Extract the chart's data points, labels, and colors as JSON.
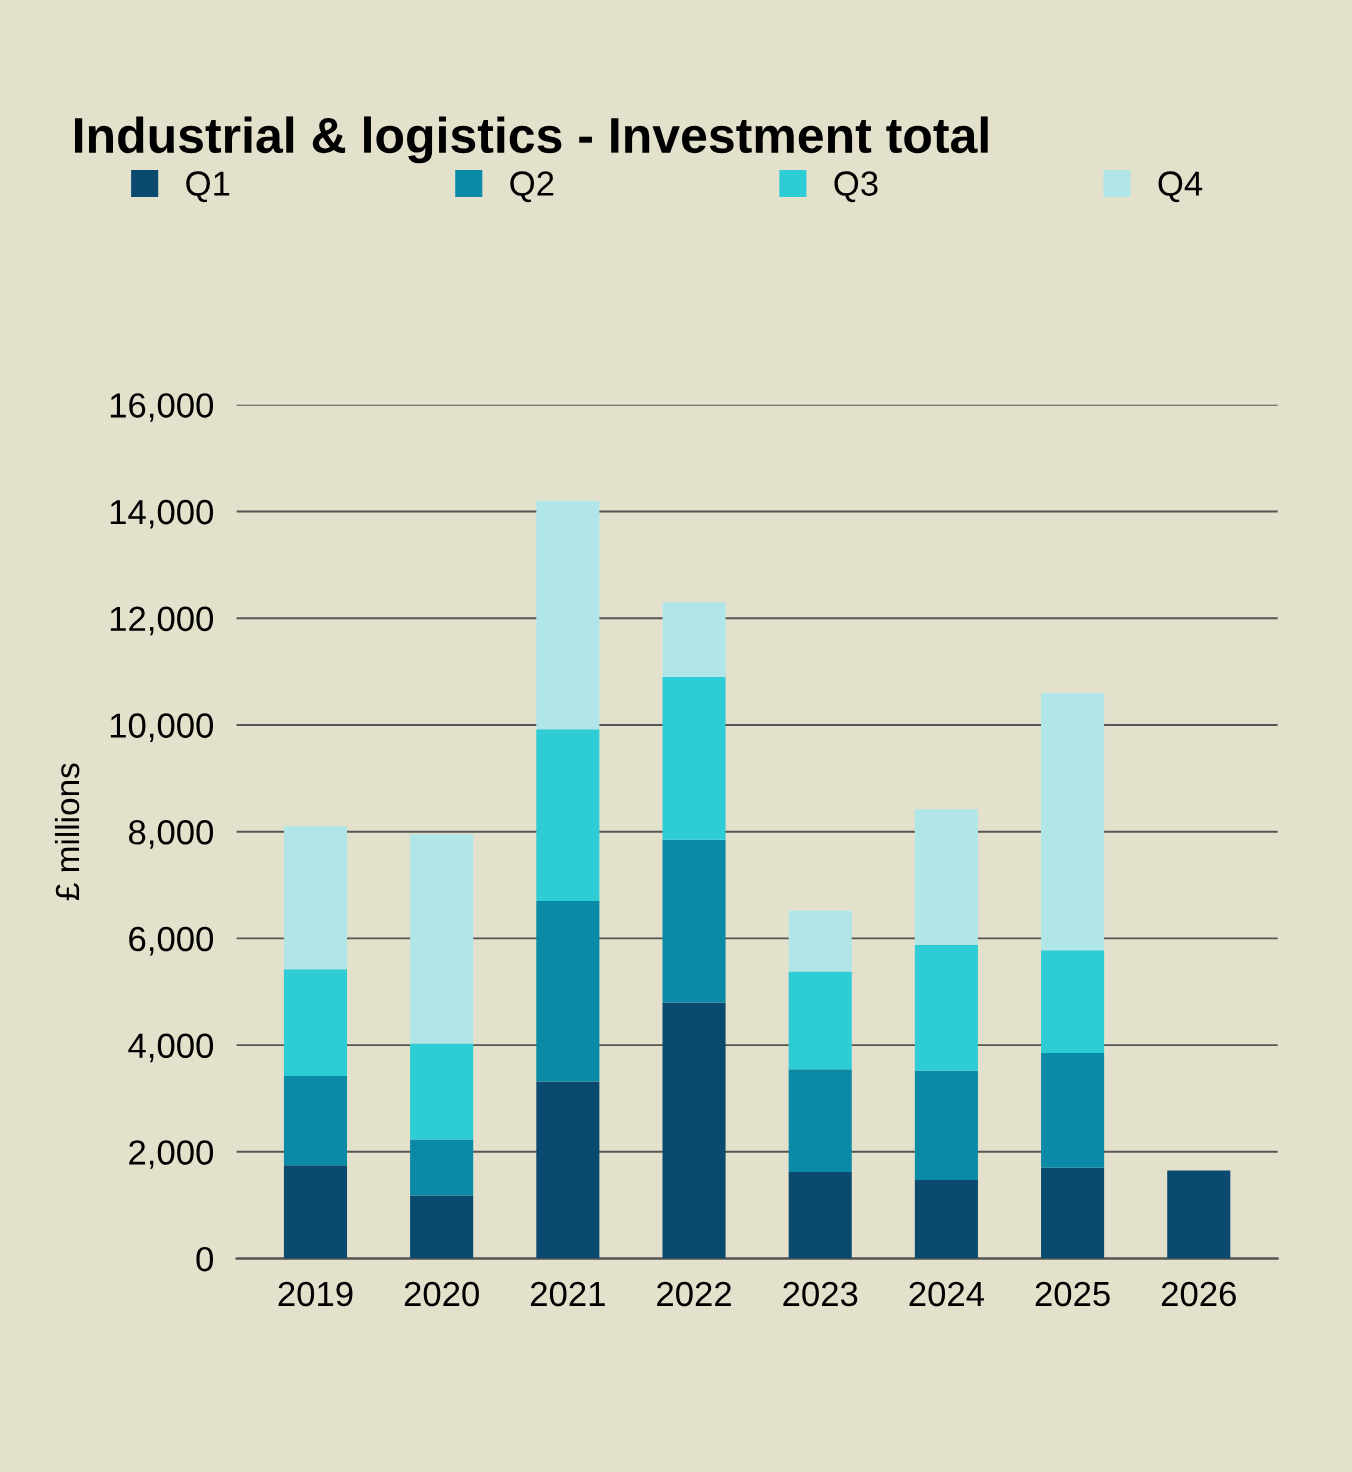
{
  "chart_data": {
    "type": "bar",
    "title": "Industrial & logistics - Investment total",
    "ylabel": "£ millions",
    "categories": [
      "2019",
      "2020",
      "2021",
      "2022",
      "2023",
      "2024",
      "2025",
      "2026"
    ],
    "stacked": true,
    "series": [
      {
        "name": "Q1",
        "color": "#0b4a6f",
        "values": [
          1750,
          1180,
          3320,
          4800,
          1620,
          1470,
          1700,
          1650
        ]
      },
      {
        "name": "Q2",
        "color": "#0a8aa6",
        "values": [
          1670,
          1050,
          3380,
          3050,
          1930,
          2050,
          2150,
          null
        ]
      },
      {
        "name": "Q3",
        "color": "#2ecdd6",
        "values": [
          2000,
          1800,
          3220,
          3050,
          1830,
          2360,
          1930,
          null
        ]
      },
      {
        "name": "Q4",
        "color": "#b1e6e9",
        "values": [
          2680,
          3920,
          4280,
          1400,
          1140,
          2540,
          4820,
          null
        ]
      }
    ],
    "ylim": [
      0,
      16000
    ],
    "yticks": [
      {
        "value": 0,
        "label": "0"
      },
      {
        "value": 2000,
        "label": "2,000"
      },
      {
        "value": 4000,
        "label": "4,000"
      },
      {
        "value": 6000,
        "label": "6,000"
      },
      {
        "value": 8000,
        "label": "8,000"
      },
      {
        "value": 10000,
        "label": "10,000"
      },
      {
        "value": 12000,
        "label": "12,000"
      },
      {
        "value": 14000,
        "label": "14,000"
      },
      {
        "value": 16000,
        "label": "16,000"
      }
    ],
    "grid": "y",
    "legend": "top"
  }
}
